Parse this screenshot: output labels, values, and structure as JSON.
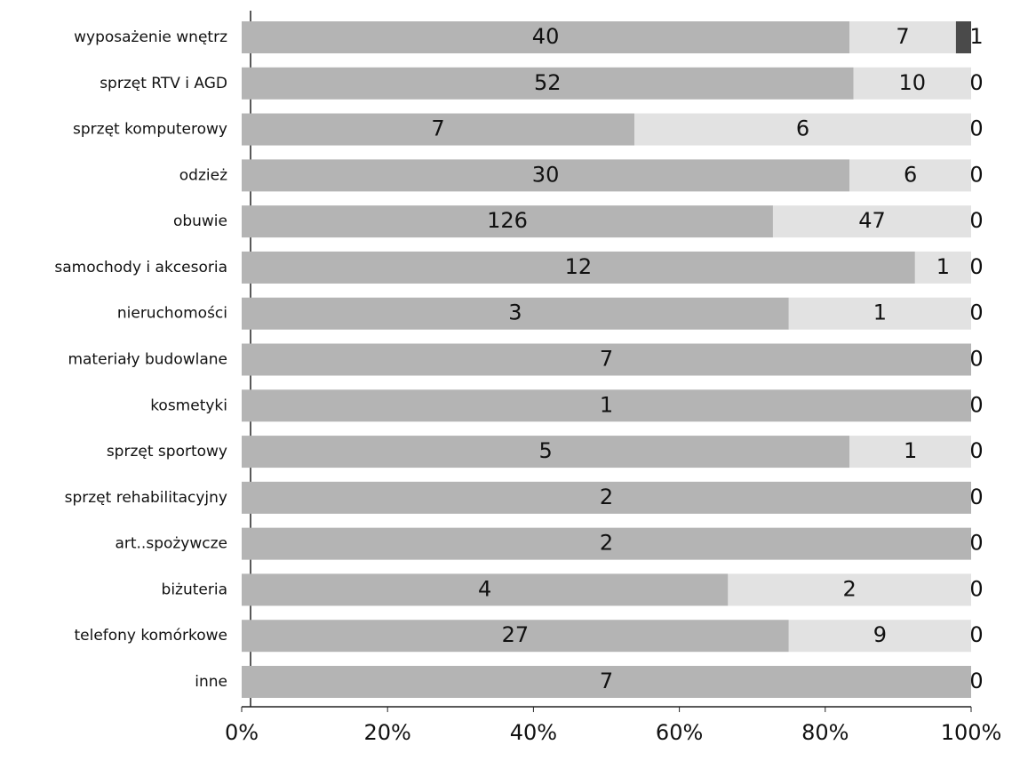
{
  "chart_data": {
    "type": "stacked_bar_100",
    "orientation": "horizontal",
    "categories": [
      "wyposażenie wnętrz",
      "sprzęt RTV i AGD",
      "sprzęt komputerowy",
      "odzież",
      "obuwie",
      "samochody i akcesoria",
      "nieruchomości",
      "materiały budowlane",
      "kosmetyki",
      "sprzęt sportowy",
      "sprzęt rehabilitacyjny",
      "art..spożywcze",
      "biżuteria",
      "telefony komórkowe",
      "inne"
    ],
    "series": [
      {
        "color": "#b4b4b4",
        "values": [
          40,
          52,
          7,
          30,
          126,
          12,
          3,
          7,
          1,
          5,
          2,
          2,
          4,
          27,
          7
        ]
      },
      {
        "color": "#e2e2e2",
        "values": [
          7,
          10,
          6,
          6,
          47,
          1,
          1,
          0,
          0,
          1,
          0,
          0,
          2,
          9,
          0
        ]
      },
      {
        "color": "#4a4a4a",
        "values": [
          1,
          0,
          0,
          0,
          0,
          0,
          0,
          0,
          0,
          0,
          0,
          0,
          0,
          0,
          0
        ]
      }
    ],
    "xlim": [
      0,
      100
    ],
    "xticks": [
      {
        "value": 0,
        "label": "0%"
      },
      {
        "value": 20,
        "label": "20%"
      },
      {
        "value": 40,
        "label": "40%"
      },
      {
        "value": 60,
        "label": "60%"
      },
      {
        "value": 80,
        "label": "80%"
      },
      {
        "value": 100,
        "label": "100%"
      }
    ]
  }
}
